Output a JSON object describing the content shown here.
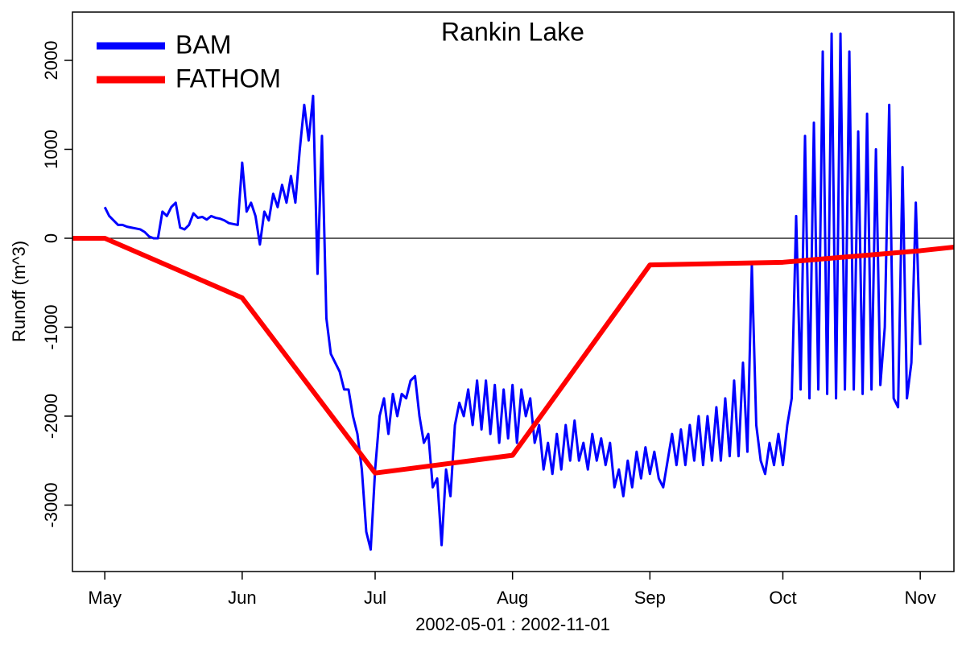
{
  "chart_data": {
    "type": "line",
    "title": "Rankin Lake",
    "xlabel": "2002-05-01 : 2002-11-01",
    "ylabel": "Runoff (m^3)",
    "xlim": [
      -7.3,
      191.6
    ],
    "xticks": [
      {
        "value": 0,
        "label": "May"
      },
      {
        "value": 31,
        "label": "Jun"
      },
      {
        "value": 61,
        "label": "Jul"
      },
      {
        "value": 92,
        "label": "Aug"
      },
      {
        "value": 123,
        "label": "Sep"
      },
      {
        "value": 153,
        "label": "Oct"
      },
      {
        "value": 184,
        "label": "Nov"
      }
    ],
    "ylim": [
      -3747,
      2543
    ],
    "yticks": [
      -3000,
      -2000,
      -1000,
      0,
      1000,
      2000
    ],
    "hline": 0,
    "legend": "top-left",
    "series": [
      {
        "name": "BAM",
        "color": "#0000ff",
        "x": [
          0,
          1,
          2,
          3,
          4,
          5,
          6,
          7,
          8,
          9,
          10,
          11,
          12,
          13,
          14,
          15,
          16,
          17,
          18,
          19,
          20,
          21,
          22,
          23,
          24,
          25,
          26,
          27,
          28,
          29,
          30,
          31,
          32,
          33,
          34,
          35,
          36,
          37,
          38,
          39,
          40,
          41,
          42,
          43,
          44,
          45,
          46,
          47,
          48,
          49,
          50,
          51,
          52,
          53,
          54,
          55,
          56,
          57,
          58,
          59,
          60,
          61,
          62,
          63,
          64,
          65,
          66,
          67,
          68,
          69,
          70,
          71,
          72,
          73,
          74,
          75,
          76,
          77,
          78,
          79,
          80,
          81,
          82,
          83,
          84,
          85,
          86,
          87,
          88,
          89,
          90,
          91,
          92,
          93,
          94,
          95,
          96,
          97,
          98,
          99,
          100,
          101,
          102,
          103,
          104,
          105,
          106,
          107,
          108,
          109,
          110,
          111,
          112,
          113,
          114,
          115,
          116,
          117,
          118,
          119,
          120,
          121,
          122,
          123,
          124,
          125,
          126,
          127,
          128,
          129,
          130,
          131,
          132,
          133,
          134,
          135,
          136,
          137,
          138,
          139,
          140,
          141,
          142,
          143,
          144,
          145,
          146,
          147,
          148,
          149,
          150,
          151,
          152,
          153,
          154,
          155,
          156,
          157,
          158,
          159,
          160,
          161,
          162,
          163,
          164,
          165,
          166,
          167,
          168,
          169,
          170,
          171,
          172,
          173,
          174,
          175,
          176,
          177,
          178,
          179,
          180,
          181,
          182,
          183,
          184
        ],
        "values": [
          350,
          250,
          200,
          150,
          150,
          130,
          120,
          110,
          100,
          70,
          20,
          0,
          0,
          300,
          250,
          350,
          400,
          120,
          100,
          150,
          280,
          230,
          240,
          210,
          250,
          230,
          220,
          200,
          170,
          160,
          150,
          850,
          300,
          400,
          250,
          -70,
          300,
          200,
          500,
          350,
          600,
          400,
          700,
          400,
          1000,
          1500,
          1100,
          1600,
          -400,
          1150,
          -900,
          -1300,
          -1400,
          -1500,
          -1700,
          -1700,
          -2000,
          -2200,
          -2600,
          -3300,
          -3500,
          -2600,
          -2000,
          -1800,
          -2200,
          -1750,
          -2000,
          -1750,
          -1800,
          -1600,
          -1550,
          -2000,
          -2300,
          -2200,
          -2800,
          -2700,
          -3450,
          -2600,
          -2900,
          -2100,
          -1850,
          -2000,
          -1700,
          -2100,
          -1600,
          -2150,
          -1600,
          -2200,
          -1650,
          -2300,
          -1700,
          -2250,
          -1650,
          -2300,
          -1700,
          -2000,
          -1800,
          -2300,
          -2100,
          -2600,
          -2300,
          -2650,
          -2200,
          -2600,
          -2100,
          -2500,
          -2050,
          -2500,
          -2300,
          -2600,
          -2200,
          -2500,
          -2250,
          -2550,
          -2300,
          -2800,
          -2600,
          -2900,
          -2500,
          -2800,
          -2400,
          -2700,
          -2350,
          -2650,
          -2400,
          -2700,
          -2800,
          -2500,
          -2200,
          -2550,
          -2150,
          -2550,
          -2100,
          -2500,
          -2000,
          -2550,
          -2000,
          -2500,
          -1900,
          -2500,
          -1800,
          -2450,
          -1600,
          -2450,
          -1400,
          -2400,
          -300,
          -2100,
          -2500,
          -2650,
          -2300,
          -2550,
          -2200,
          -2550,
          -2100,
          -1800,
          250,
          -1700,
          1150,
          -1800,
          1300,
          -1700,
          2100,
          -1750,
          2300,
          -1800,
          2300,
          -1700,
          2100,
          -1700,
          1200,
          -1750,
          1400,
          -1700,
          1000,
          -1650,
          -1000,
          1500,
          -1800,
          -1900,
          800,
          -1800,
          -1400,
          400,
          -1200
        ]
      },
      {
        "name": "FATHOM",
        "color": "#ff0000",
        "x": [
          -30,
          0,
          31,
          61,
          92,
          123,
          153,
          184,
          214
        ],
        "values": [
          0,
          0,
          -670,
          -2640,
          -2440,
          -300,
          -270,
          -140,
          20
        ]
      }
    ]
  }
}
